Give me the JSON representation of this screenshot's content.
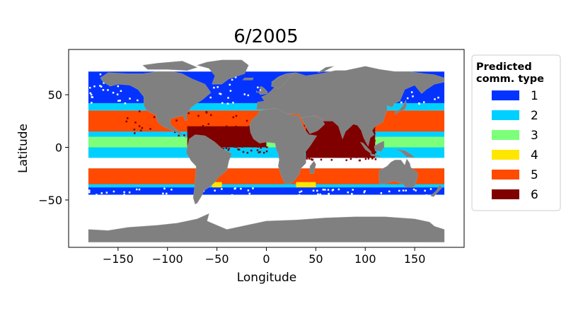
{
  "title": "6/2005",
  "axes": {
    "xlabel": "Longitude",
    "ylabel": "Latitude",
    "xlim": [
      -200,
      200
    ],
    "ylim": [
      -95,
      93
    ],
    "xticks": [
      {
        "value": -150,
        "label": "−150"
      },
      {
        "value": -100,
        "label": "−100"
      },
      {
        "value": -50,
        "label": "−50"
      },
      {
        "value": 0,
        "label": "0"
      },
      {
        "value": 50,
        "label": "50"
      },
      {
        "value": 100,
        "label": "100"
      },
      {
        "value": 150,
        "label": "150"
      }
    ],
    "yticks": [
      {
        "value": 50,
        "label": "50"
      },
      {
        "value": 0,
        "label": "0"
      },
      {
        "value": -50,
        "label": "−50"
      }
    ]
  },
  "legend": {
    "title_line1": "Predicted",
    "title_line2": "comm. type",
    "placement": "outside-right",
    "items": [
      {
        "label": "1",
        "color": "#0433ff"
      },
      {
        "label": "2",
        "color": "#00d0ff"
      },
      {
        "label": "3",
        "color": "#7cff79"
      },
      {
        "label": "4",
        "color": "#ffe600"
      },
      {
        "label": "5",
        "color": "#ff4a00"
      },
      {
        "label": "6",
        "color": "#800000"
      }
    ]
  },
  "colors": {
    "land": "#808080",
    "ocean_missing": "#ffffff"
  },
  "chart_data": {
    "type": "map",
    "title": "6/2005",
    "xlabel": "Longitude",
    "ylabel": "Latitude",
    "xlim": [
      -200,
      200
    ],
    "ylim": [
      -95,
      93
    ],
    "categories": [
      "1",
      "2",
      "3",
      "4",
      "5",
      "6"
    ],
    "zones": [
      {
        "type": 1,
        "lon": [
          -180,
          180
        ],
        "lat": [
          40,
          72
        ]
      },
      {
        "type": 1,
        "lon": [
          -180,
          180
        ],
        "lat": [
          -45,
          -38
        ]
      },
      {
        "type": 2,
        "lon": [
          -180,
          180
        ],
        "lat": [
          -38,
          -20
        ]
      },
      {
        "type": 5,
        "lon": [
          -180,
          180
        ],
        "lat": [
          -35,
          -20
        ]
      },
      {
        "type": 2,
        "lon": [
          -180,
          180
        ],
        "lat": [
          -10,
          0
        ]
      },
      {
        "type": 3,
        "lon": [
          -180,
          180
        ],
        "lat": [
          0,
          10
        ]
      },
      {
        "type": 2,
        "lon": [
          -180,
          180
        ],
        "lat": [
          10,
          18
        ]
      },
      {
        "type": 5,
        "lon": [
          -180,
          180
        ],
        "lat": [
          15,
          35
        ]
      },
      {
        "type": 2,
        "lon": [
          -180,
          180
        ],
        "lat": [
          35,
          42
        ]
      },
      {
        "type": 6,
        "lon": [
          -80,
          0
        ],
        "lat": [
          0,
          20
        ]
      },
      {
        "type": 6,
        "lon": [
          40,
          110
        ],
        "lat": [
          -10,
          25
        ]
      },
      {
        "type": 4,
        "lon": [
          30,
          50
        ],
        "lat": [
          -38,
          -33
        ]
      },
      {
        "type": 4,
        "lon": [
          -55,
          -45
        ],
        "lat": [
          -38,
          -33
        ]
      }
    ]
  }
}
